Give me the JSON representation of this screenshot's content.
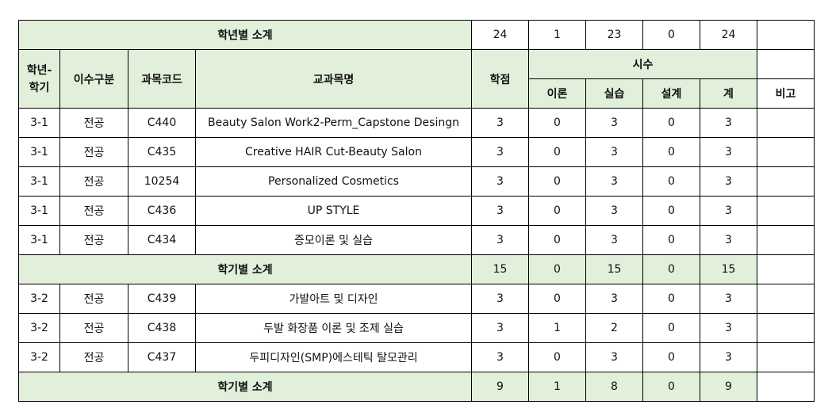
{
  "year_subtotal": {
    "label": "학년별 소계",
    "credits": "24",
    "theory": "1",
    "practice": "23",
    "design": "0",
    "total": "24",
    "note": ""
  },
  "headers": {
    "term": "학년-\n학기",
    "category": "이수구분",
    "code": "과목코드",
    "name": "교과목명",
    "credits": "학점",
    "hours": "시수",
    "theory": "이론",
    "practice": "실습",
    "design": "설계",
    "total": "계",
    "note": "비고"
  },
  "semester1": [
    {
      "term": "3-1",
      "category": "전공",
      "code": "C440",
      "name": "Beauty Salon Work2-Perm_Capstone Desingn",
      "credits": "3",
      "theory": "0",
      "practice": "3",
      "design": "0",
      "total": "3",
      "note": ""
    },
    {
      "term": "3-1",
      "category": "전공",
      "code": "C435",
      "name": "Creative HAIR Cut-Beauty Salon",
      "credits": "3",
      "theory": "0",
      "practice": "3",
      "design": "0",
      "total": "3",
      "note": ""
    },
    {
      "term": "3-1",
      "category": "전공",
      "code": "10254",
      "name": "Personalized Cosmetics",
      "credits": "3",
      "theory": "0",
      "practice": "3",
      "design": "0",
      "total": "3",
      "note": ""
    },
    {
      "term": "3-1",
      "category": "전공",
      "code": "C436",
      "name": "UP STYLE",
      "credits": "3",
      "theory": "0",
      "practice": "3",
      "design": "0",
      "total": "3",
      "note": ""
    },
    {
      "term": "3-1",
      "category": "전공",
      "code": "C434",
      "name": "증모이론 및 실습",
      "credits": "3",
      "theory": "0",
      "practice": "3",
      "design": "0",
      "total": "3",
      "note": ""
    }
  ],
  "semester1_subtotal": {
    "label": "학기별 소계",
    "credits": "15",
    "theory": "0",
    "practice": "15",
    "design": "0",
    "total": "15",
    "note": ""
  },
  "semester2": [
    {
      "term": "3-2",
      "category": "전공",
      "code": "C439",
      "name": "가발아트 및 디자인",
      "credits": "3",
      "theory": "0",
      "practice": "3",
      "design": "0",
      "total": "3",
      "note": ""
    },
    {
      "term": "3-2",
      "category": "전공",
      "code": "C438",
      "name": "두발 화장품 이론 및 조제 실습",
      "credits": "3",
      "theory": "1",
      "practice": "2",
      "design": "0",
      "total": "3",
      "note": ""
    },
    {
      "term": "3-2",
      "category": "전공",
      "code": "C437",
      "name": "두피디자인(SMP)에스테틱 탈모관리",
      "credits": "3",
      "theory": "0",
      "practice": "3",
      "design": "0",
      "total": "3",
      "note": ""
    }
  ],
  "semester2_subtotal": {
    "label": "학기별 소계",
    "credits": "9",
    "theory": "1",
    "practice": "8",
    "design": "0",
    "total": "9",
    "note": ""
  },
  "colors": {
    "header_bg": "#e2efda",
    "border": "#000000"
  }
}
